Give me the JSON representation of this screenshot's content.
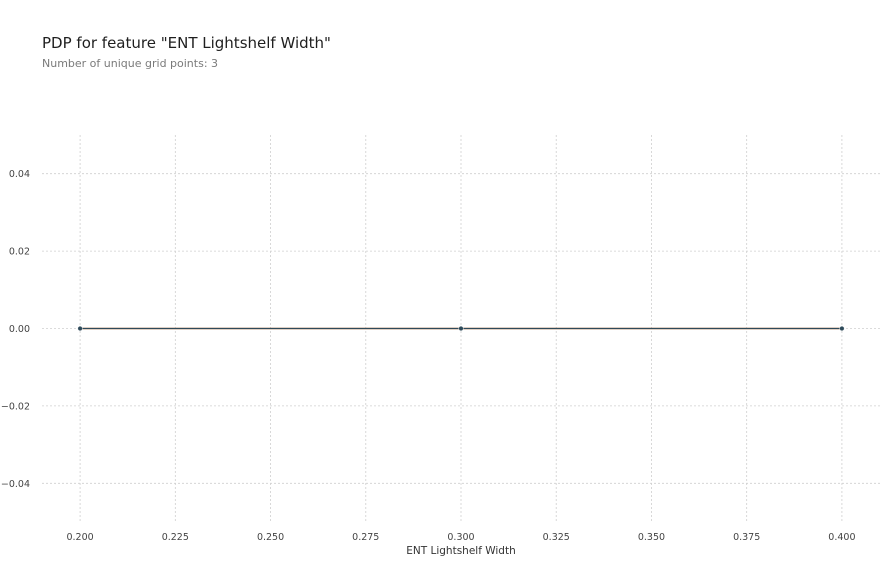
{
  "chart_data": {
    "type": "line",
    "title": "PDP for feature \"ENT Lightshelf Width\"",
    "subtitle": "Number of unique grid points: 3",
    "xlabel": "ENT Lightshelf Width",
    "ylabel": "",
    "x": [
      0.2,
      0.3,
      0.4
    ],
    "series": [
      {
        "values": [
          0.0,
          0.0,
          0.0
        ],
        "color": "#2e4a5a",
        "marker_color": "#2e4a5a"
      },
      {
        "values": [
          0.0,
          0.0,
          0.0
        ],
        "color": "#e07b39"
      }
    ],
    "xlim": [
      0.19,
      0.41
    ],
    "ylim": [
      -0.05,
      0.05
    ],
    "x_ticks": [
      "0.200",
      "0.225",
      "0.250",
      "0.275",
      "0.300",
      "0.325",
      "0.350",
      "0.375",
      "0.400"
    ],
    "x_tick_values": [
      0.2,
      0.225,
      0.25,
      0.275,
      0.3,
      0.325,
      0.35,
      0.375,
      0.4
    ],
    "y_ticks": [
      "0.04",
      "0.02",
      "0.00",
      "−0.02",
      "−0.04"
    ],
    "y_tick_values": [
      0.04,
      0.02,
      0.0,
      -0.02,
      -0.04
    ],
    "grid": true,
    "legend": "none"
  }
}
